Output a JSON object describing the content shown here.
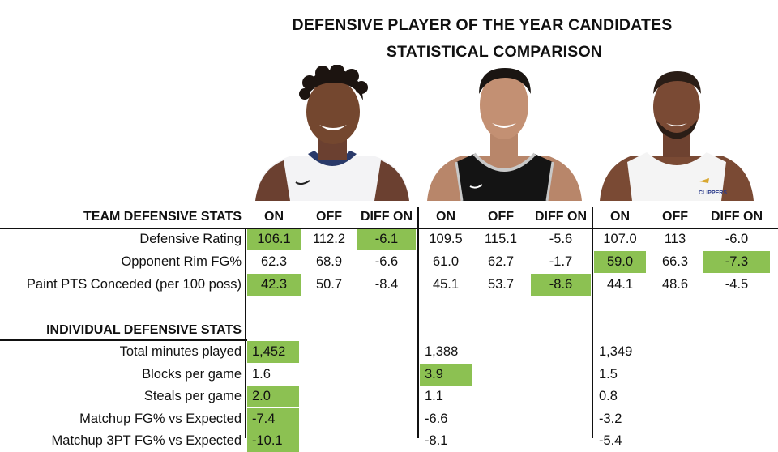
{
  "title": "DEFENSIVE PLAYER OF THE YEAR CANDIDATES",
  "subtitle": "STATISTICAL COMPARISON",
  "colors": {
    "highlight": "#8cc152",
    "text": "#111111",
    "background": "#ffffff"
  },
  "chart_data": {
    "type": "table",
    "title": "DEFENSIVE PLAYER OF THE YEAR CANDIDATES",
    "subtitle": "STATISTICAL COMPARISON",
    "sections": [
      {
        "heading": "TEAM DEFENSIVE STATS",
        "columns": [
          "ON",
          "OFF",
          "DIFF ON"
        ],
        "rows": [
          {
            "label": "Defensive Rating",
            "players": [
              [
                "106.1",
                "112.2",
                "-6.1"
              ],
              [
                "109.5",
                "115.1",
                "-5.6"
              ],
              [
                "107.0",
                "113",
                "-6.0"
              ]
            ],
            "highlight": [
              [
                true,
                false,
                true
              ],
              [
                false,
                false,
                false
              ],
              [
                false,
                false,
                false
              ]
            ]
          },
          {
            "label": "Opponent Rim FG%",
            "players": [
              [
                "62.3",
                "68.9",
                "-6.6"
              ],
              [
                "61.0",
                "62.7",
                "-1.7"
              ],
              [
                "59.0",
                "66.3",
                "-7.3"
              ]
            ],
            "highlight": [
              [
                false,
                false,
                false
              ],
              [
                false,
                false,
                false
              ],
              [
                true,
                false,
                true
              ]
            ]
          },
          {
            "label": "Paint PTS Conceded (per 100 poss)",
            "players": [
              [
                "42.3",
                "50.7",
                "-8.4"
              ],
              [
                "45.1",
                "53.7",
                "-8.6"
              ],
              [
                "44.1",
                "48.6",
                "-4.5"
              ]
            ],
            "highlight": [
              [
                true,
                false,
                false
              ],
              [
                false,
                false,
                true
              ],
              [
                false,
                false,
                false
              ]
            ]
          }
        ]
      },
      {
        "heading": "INDIVIDUAL DEFENSIVE STATS",
        "rows": [
          {
            "label": "Total minutes played",
            "values": [
              "1,452",
              "1,388",
              "1,349"
            ],
            "highlight": [
              true,
              false,
              false
            ]
          },
          {
            "label": "Blocks per game",
            "values": [
              "1.6",
              "3.9",
              "1.5"
            ],
            "highlight": [
              false,
              true,
              false
            ]
          },
          {
            "label": "Steals per game",
            "values": [
              "2.0",
              "1.1",
              "0.8"
            ],
            "highlight": [
              true,
              false,
              false
            ]
          },
          {
            "label": "Matchup FG% vs Expected",
            "values": [
              "-7.4",
              "-6.6",
              "-3.2"
            ],
            "highlight": [
              true,
              false,
              false
            ]
          },
          {
            "label": "Matchup 3PT FG% vs Expected",
            "values": [
              "-10.1",
              "-8.1",
              "-5.4"
            ],
            "highlight": [
              true,
              false,
              false
            ]
          }
        ]
      }
    ]
  },
  "players": [
    {
      "jersey": "navy-white",
      "avatar": "player-1-photo"
    },
    {
      "jersey": "black-silver",
      "avatar": "player-2-photo"
    },
    {
      "jersey": "white-clippers",
      "avatar": "player-3-photo",
      "jersey_text": "CLIPPERS"
    }
  ]
}
